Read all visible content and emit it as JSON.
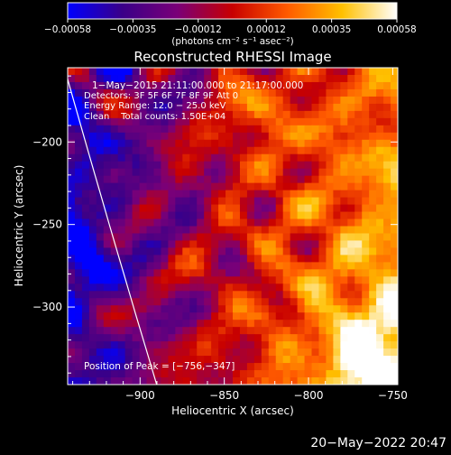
{
  "chart_data": {
    "type": "heatmap",
    "title": "Reconstructed RHESSI Image",
    "xlabel": "Heliocentric X (arcsec)",
    "ylabel": "Heliocentric Y (arcsec)",
    "xlim": [
      -943,
      -747
    ],
    "ylim": [
      -347,
      -155
    ],
    "x_ticks": [
      -900,
      -850,
      -800,
      -750
    ],
    "x_tick_labels": [
      "−900",
      "−850",
      "−800",
      "−750"
    ],
    "y_ticks": [
      -200,
      -250,
      -300
    ],
    "y_tick_labels": [
      "−200",
      "−250",
      "−300"
    ],
    "colorbar": {
      "range": [
        -0.00058,
        0.00058
      ],
      "ticks": [
        -0.00058,
        -0.00035,
        -0.00012,
        0.00012,
        0.00035,
        0.00058
      ],
      "tick_labels": [
        "−0.00058",
        "−0.00035",
        "−0.00012",
        "0.00012",
        "0.00035",
        "0.00058"
      ],
      "unit": "(photons cm⁻² s⁻¹ asec⁻²)",
      "colormap": [
        "#0000ff",
        "#3a0088",
        "#7a0078",
        "#c80000",
        "#ff5a00",
        "#ffc000",
        "#ffffff"
      ]
    },
    "annotations": [
      "1−May−2015 21:11:00.000 to 21:17:00.000",
      "Detectors: 3F 5F 6F 7F 8F 9F Att 0",
      "Energy Range: 12.0 − 25.0 keV",
      "Clean    Total counts: 1.50E+04"
    ],
    "peak_label": "Position of Peak = [−756,−347]",
    "peak": [
      -756,
      -347
    ],
    "limb_color": "#ffffff"
  },
  "timestamp": "20−May−2022 20:47"
}
